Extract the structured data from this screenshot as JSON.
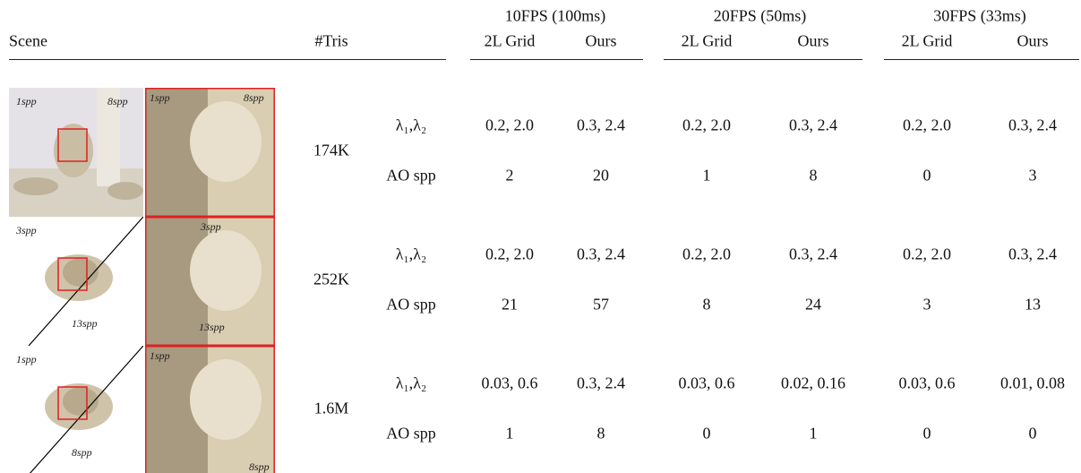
{
  "header": {
    "scene": "Scene",
    "tris": "#Tris",
    "groups": [
      {
        "title": "10FPS (100ms)",
        "columns": [
          "2L Grid",
          "Ours"
        ]
      },
      {
        "title": "20FPS (50ms)",
        "columns": [
          "2L Grid",
          "Ours"
        ]
      },
      {
        "title": "30FPS (33ms)",
        "columns": [
          "2L Grid",
          "Ours"
        ]
      }
    ]
  },
  "rows": [
    {
      "tris": "174K",
      "thumb_labels": [
        "1spp",
        "8spp"
      ],
      "crop_labels": [
        "1spp",
        "8spp"
      ],
      "params": {
        "label": "λ₁,λ₂",
        "values": [
          "0.2, 2.0",
          "0.3, 2.4",
          "0.2, 2.0",
          "0.3, 2.4",
          "0.2, 2.0",
          "0.3, 2.4"
        ]
      },
      "ao": {
        "label": "AO spp",
        "values": [
          2,
          20,
          1,
          8,
          0,
          3
        ]
      }
    },
    {
      "tris": "252K",
      "thumb_labels": [
        "3spp",
        "13spp"
      ],
      "crop_labels": [
        "3spp",
        "13spp"
      ],
      "params": {
        "label": "λ₁,λ₂",
        "values": [
          "0.2, 2.0",
          "0.3, 2.4",
          "0.2, 2.0",
          "0.3, 2.4",
          "0.2, 2.0",
          "0.3, 2.4"
        ]
      },
      "ao": {
        "label": "AO spp",
        "values": [
          21,
          57,
          8,
          24,
          3,
          13
        ]
      }
    },
    {
      "tris": "1.6M",
      "thumb_labels": [
        "1spp",
        "8spp"
      ],
      "crop_labels": [
        "1spp",
        "8spp"
      ],
      "params": {
        "label": "λ₁,λ₂",
        "values": [
          "0.03, 0.6",
          "0.3, 2.4",
          "0.03, 0.6",
          "0.02, 0.16",
          "0.03, 0.6",
          "0.01, 0.08"
        ]
      },
      "ao": {
        "label": "AO spp",
        "values": [
          1,
          8,
          0,
          1,
          0,
          0
        ]
      }
    }
  ]
}
